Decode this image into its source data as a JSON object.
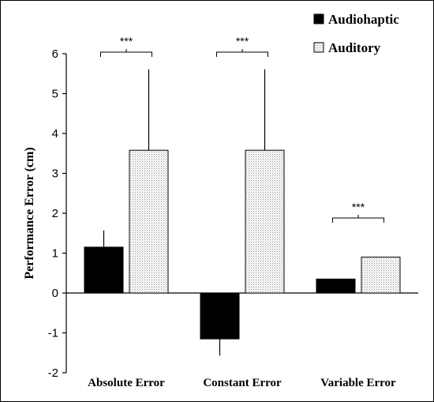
{
  "chart_data": {
    "type": "bar",
    "ylabel": "Performance Error (cm)",
    "ylim": [
      -2,
      6
    ],
    "yticks": [
      "-2",
      "-1",
      "0",
      "1",
      "2",
      "3",
      "4",
      "5",
      "6"
    ],
    "categories": [
      "Absolute Error",
      "Constant Error",
      "Variable Error"
    ],
    "series": [
      {
        "name": "Audiohaptic",
        "values": [
          1.15,
          -1.15,
          0.35
        ],
        "error": [
          0.42,
          0.42,
          0
        ],
        "color": "#000000",
        "pattern": "solid"
      },
      {
        "name": "Auditory",
        "values": [
          3.58,
          3.58,
          0.9
        ],
        "error": [
          2.03,
          2.03,
          0
        ],
        "color": "#ffffff",
        "pattern": "dotted"
      }
    ],
    "significance": [
      "***",
      "***",
      "***"
    ],
    "legend_position": "top-right",
    "grid": false
  }
}
